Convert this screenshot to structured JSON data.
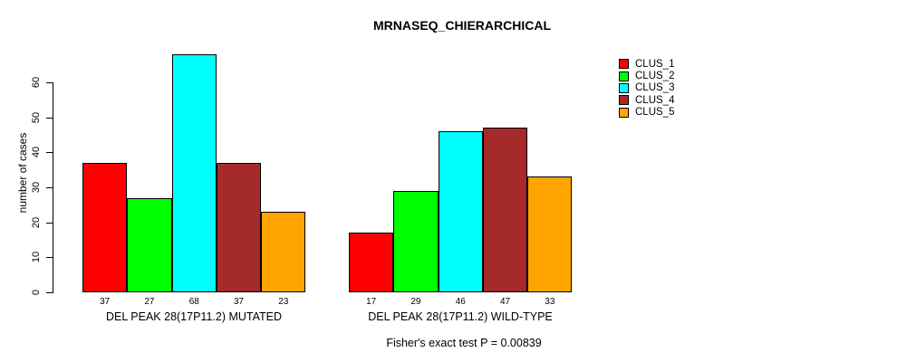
{
  "chart_data": {
    "type": "bar",
    "title": "MRNASEQ_CHIERARCHICAL",
    "ylabel": "number of cases",
    "categories": [
      "DEL PEAK 28(17P11.2) MUTATED",
      "DEL PEAK 28(17P11.2) WILD-TYPE"
    ],
    "series": [
      {
        "name": "CLUS_1",
        "color": "#ff0000",
        "values": [
          37,
          17
        ]
      },
      {
        "name": "CLUS_2",
        "color": "#00ff00",
        "values": [
          27,
          29
        ]
      },
      {
        "name": "CLUS_3",
        "color": "#00ffff",
        "values": [
          68,
          46
        ]
      },
      {
        "name": "CLUS_4",
        "color": "#a52a2a",
        "values": [
          37,
          47
        ]
      },
      {
        "name": "CLUS_5",
        "color": "#ffa500",
        "values": [
          23,
          33
        ]
      }
    ],
    "yticks": [
      0,
      10,
      20,
      30,
      40,
      50,
      60
    ],
    "ylim": [
      0,
      68
    ],
    "grid": false,
    "bar_value_labels": true,
    "legend_position": "top-right",
    "annotation": "Fisher's exact test P = 0.00839"
  }
}
